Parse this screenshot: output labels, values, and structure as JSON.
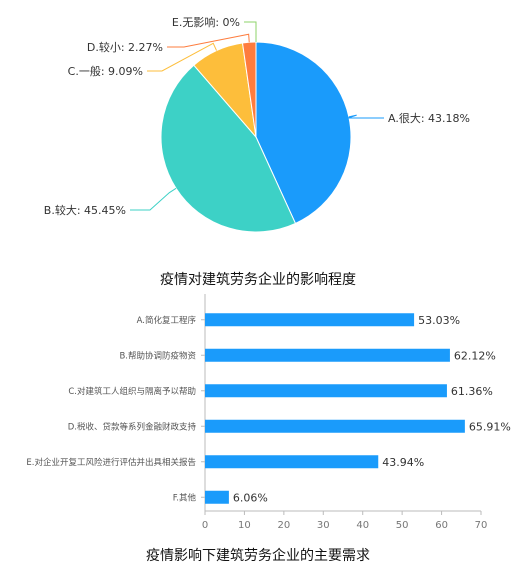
{
  "colors": {
    "pie": [
      "#1a9bfb",
      "#3dd1c6",
      "#fdbe3b",
      "#fe7c3e",
      "#8ed36a"
    ],
    "bar": "#1a9bfb",
    "axis": "#bbbbbb"
  },
  "chart_data": [
    {
      "type": "pie",
      "caption": "疫情对建筑劳务企业的影响程度",
      "labels": [
        "A.很大",
        "B.较大",
        "C.一般",
        "D.较小",
        "E.无影响"
      ],
      "values": [
        43.18,
        45.45,
        9.09,
        2.27,
        0
      ],
      "label_texts": [
        "A.很大: 43.18%",
        "B.较大: 45.45%",
        "C.一般: 9.09%",
        "D.较小: 2.27%",
        "E.无影响: 0%"
      ],
      "legend": "none"
    },
    {
      "type": "bar",
      "orientation": "horizontal",
      "caption": "疫情影响下建筑劳务企业的主要需求",
      "categories": [
        "A.简化复工程序",
        "B.帮助协调防疫物资",
        "C.对建筑工人组织与隔离予以帮助",
        "D.税收、贷款等系列金融财政支持",
        "E.对企业开复工风险进行评估并出具相关报告",
        "F.其他"
      ],
      "values": [
        53.03,
        62.12,
        61.36,
        65.91,
        43.94,
        6.06
      ],
      "value_labels": [
        "53.03%",
        "62.12%",
        "61.36%",
        "65.91%",
        "43.94%",
        "6.06%"
      ],
      "xlim": [
        0,
        70
      ],
      "xticks": [
        "0",
        "10",
        "20",
        "30",
        "40",
        "50",
        "60",
        "70"
      ],
      "grid": false
    }
  ]
}
